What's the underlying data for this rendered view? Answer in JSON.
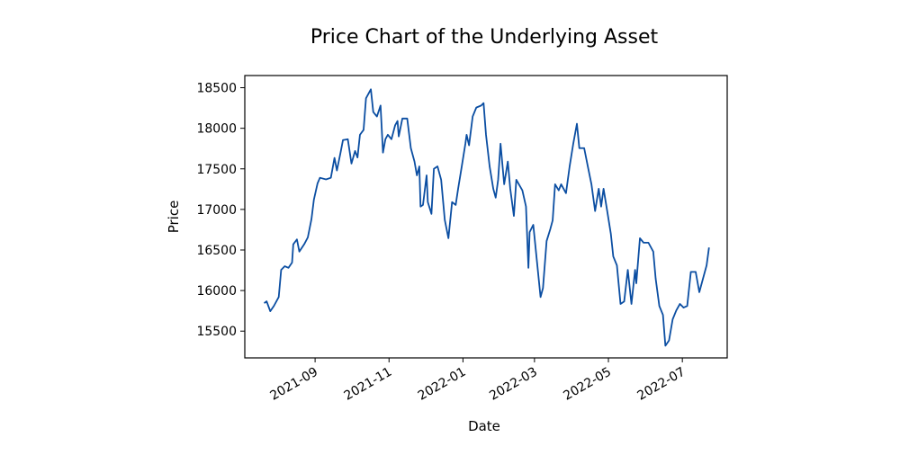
{
  "chart_data": {
    "type": "line",
    "title": "Price Chart of the Underlying Asset",
    "x_label": "Date",
    "y_label": "Price",
    "xlim": [
      "2021-07-05",
      "2022-08-07"
    ],
    "ylim": [
      15170,
      18650
    ],
    "xticks": [
      "2021-09",
      "2021-11",
      "2022-01",
      "2022-03",
      "2022-05",
      "2022-07"
    ],
    "yticks": [
      15500,
      16000,
      16500,
      17000,
      17500,
      18000,
      18500
    ],
    "grid": false,
    "series": [
      {
        "name": "Price",
        "color": "#0b4ea2",
        "x": [
          "2021-07-21",
          "2021-07-23",
          "2021-07-26",
          "2021-07-29",
          "2021-08-02",
          "2021-08-04",
          "2021-08-07",
          "2021-08-10",
          "2021-08-13",
          "2021-08-14",
          "2021-08-17",
          "2021-08-19",
          "2021-08-23",
          "2021-08-26",
          "2021-08-29",
          "2021-08-31",
          "2021-09-03",
          "2021-09-05",
          "2021-09-10",
          "2021-09-14",
          "2021-09-17",
          "2021-09-19",
          "2021-09-22",
          "2021-09-24",
          "2021-09-28",
          "2021-10-01",
          "2021-10-04",
          "2021-10-06",
          "2021-10-08",
          "2021-10-11",
          "2021-10-13",
          "2021-10-17",
          "2021-10-19",
          "2021-10-22",
          "2021-10-25",
          "2021-10-27",
          "2021-10-29",
          "2021-10-31",
          "2021-11-03",
          "2021-11-06",
          "2021-11-08",
          "2021-11-09",
          "2021-11-12",
          "2021-11-16",
          "2021-11-19",
          "2021-11-22",
          "2021-11-24",
          "2021-11-26",
          "2021-11-27",
          "2021-11-29",
          "2021-12-02",
          "2021-12-03",
          "2021-12-06",
          "2021-12-08",
          "2021-12-11",
          "2021-12-14",
          "2021-12-17",
          "2021-12-20",
          "2021-12-23",
          "2021-12-26",
          "2021-12-28",
          "2021-12-31",
          "2022-01-03",
          "2022-01-04",
          "2022-01-06",
          "2022-01-09",
          "2022-01-12",
          "2022-01-16",
          "2022-01-18",
          "2022-01-20",
          "2022-01-23",
          "2022-01-26",
          "2022-01-28",
          "2022-01-30",
          "2022-02-01",
          "2022-02-04",
          "2022-02-07",
          "2022-02-09",
          "2022-02-12",
          "2022-02-14",
          "2022-02-19",
          "2022-02-22",
          "2022-02-24",
          "2022-02-25",
          "2022-02-28",
          "2022-03-03",
          "2022-03-06",
          "2022-03-08",
          "2022-03-11",
          "2022-03-14",
          "2022-03-16",
          "2022-03-18",
          "2022-03-21",
          "2022-03-23",
          "2022-03-27",
          "2022-03-30",
          "2022-04-02",
          "2022-04-05",
          "2022-04-07",
          "2022-04-11",
          "2022-04-14",
          "2022-04-17",
          "2022-04-20",
          "2022-04-23",
          "2022-04-25",
          "2022-04-27",
          "2022-04-30",
          "2022-05-03",
          "2022-05-05",
          "2022-05-08",
          "2022-05-11",
          "2022-05-14",
          "2022-05-17",
          "2022-05-20",
          "2022-05-23",
          "2022-05-24",
          "2022-05-27",
          "2022-05-30",
          "2022-06-03",
          "2022-06-07",
          "2022-06-09",
          "2022-06-12",
          "2022-06-15",
          "2022-06-17",
          "2022-06-20",
          "2022-06-23",
          "2022-06-26",
          "2022-06-29",
          "2022-07-02",
          "2022-07-05",
          "2022-07-08",
          "2022-07-12",
          "2022-07-15",
          "2022-07-18",
          "2022-07-21",
          "2022-07-23"
        ],
        "values": [
          15845,
          15867,
          15745,
          15810,
          15920,
          16255,
          16300,
          16280,
          16345,
          16570,
          16630,
          16480,
          16570,
          16655,
          16880,
          17120,
          17320,
          17390,
          17370,
          17390,
          17635,
          17480,
          17700,
          17855,
          17865,
          17565,
          17720,
          17640,
          17920,
          17980,
          18370,
          18480,
          18200,
          18145,
          18280,
          17700,
          17865,
          17920,
          17865,
          18035,
          18090,
          17900,
          18120,
          18120,
          17755,
          17590,
          17420,
          17530,
          17035,
          17055,
          17420,
          17090,
          16945,
          17500,
          17530,
          17365,
          16870,
          16645,
          17090,
          17055,
          17255,
          17530,
          17810,
          17920,
          17790,
          18145,
          18255,
          18280,
          18310,
          17920,
          17530,
          17255,
          17145,
          17365,
          17810,
          17310,
          17590,
          17255,
          16920,
          17365,
          17235,
          17035,
          16280,
          16720,
          16810,
          16365,
          15920,
          16030,
          16610,
          16755,
          16865,
          17310,
          17235,
          17310,
          17200,
          17530,
          17810,
          18055,
          17755,
          17755,
          17530,
          17310,
          16980,
          17255,
          17035,
          17255,
          16980,
          16700,
          16420,
          16310,
          15835,
          15865,
          16255,
          15835,
          16255,
          16090,
          16645,
          16590,
          16590,
          16480,
          16145,
          15810,
          15700,
          15320,
          15385,
          15645,
          15755,
          15835,
          15790,
          15810,
          16230,
          16230,
          15980,
          16145,
          16310,
          16530
        ]
      }
    ]
  }
}
